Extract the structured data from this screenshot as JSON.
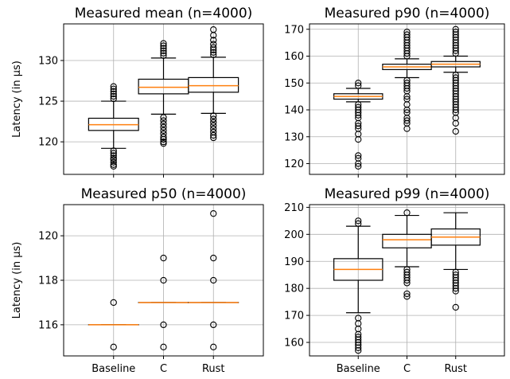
{
  "chart_data": [
    {
      "type": "box",
      "title": "Measured mean (n=4000)",
      "xlabel": "",
      "ylabel": "Latency (in µs)",
      "ylim": [
        116,
        134.5
      ],
      "yticks": [
        120,
        125,
        130
      ],
      "grid": true,
      "categories": [
        "Baseline",
        "C",
        "Rust"
      ],
      "boxes": [
        {
          "whislo": 119.2,
          "q1": 121.4,
          "median": 122.1,
          "q3": 122.9,
          "whishi": 125.0,
          "fliers": [
            117.0,
            117.2,
            117.5,
            117.8,
            118.0,
            118.3,
            118.6,
            118.9,
            125.3,
            125.6,
            125.9,
            126.2,
            126.5,
            126.8
          ]
        },
        {
          "whislo": 123.4,
          "q1": 125.9,
          "median": 126.7,
          "q3": 127.7,
          "whishi": 130.3,
          "fliers": [
            119.8,
            120.0,
            120.3,
            120.6,
            121.0,
            121.4,
            121.8,
            122.2,
            122.6,
            123.0,
            130.6,
            130.9,
            131.2,
            131.5,
            131.8,
            132.1
          ]
        },
        {
          "whislo": 123.5,
          "q1": 126.1,
          "median": 126.9,
          "q3": 127.9,
          "whishi": 130.4,
          "fliers": [
            120.5,
            120.8,
            121.2,
            121.6,
            122.0,
            122.4,
            122.8,
            123.2,
            130.7,
            131.0,
            131.3,
            131.6,
            132.0,
            132.5,
            133.1,
            133.8
          ]
        }
      ]
    },
    {
      "type": "box",
      "title": "Measured p90 (n=4000)",
      "xlabel": "",
      "ylabel": "",
      "ylim": [
        116,
        172
      ],
      "yticks": [
        120,
        130,
        140,
        150,
        160,
        170
      ],
      "grid": true,
      "categories": [
        "Baseline",
        "C",
        "Rust"
      ],
      "boxes": [
        {
          "whislo": 143.0,
          "q1": 144.0,
          "median": 145.0,
          "q3": 146.0,
          "whishi": 148.0,
          "fliers": [
            119,
            120,
            122,
            123,
            129,
            131,
            133,
            134,
            135,
            137,
            138,
            139,
            140,
            141,
            142,
            149,
            150
          ]
        },
        {
          "whislo": 152.0,
          "q1": 155.0,
          "median": 156.0,
          "q3": 157.0,
          "whishi": 159.0,
          "fliers": [
            133,
            135,
            136,
            137,
            139,
            140,
            142,
            144,
            145,
            147,
            148,
            149,
            150,
            151,
            160,
            161,
            162,
            163,
            164,
            165,
            166,
            167,
            168,
            169
          ]
        },
        {
          "whislo": 154.0,
          "q1": 156.0,
          "median": 157.0,
          "q3": 158.0,
          "whishi": 160.0,
          "fliers": [
            132,
            135,
            137,
            139,
            140,
            141,
            142,
            143,
            144,
            145,
            146,
            147,
            148,
            149,
            150,
            151,
            152,
            153,
            161,
            162,
            163,
            164,
            165,
            166,
            167,
            168,
            169,
            170
          ]
        }
      ]
    },
    {
      "type": "box",
      "title": "Measured p50 (n=4000)",
      "xlabel": "",
      "ylabel": "Latency (in µs)",
      "ylim": [
        114.6,
        121.4
      ],
      "yticks": [
        116,
        118,
        120
      ],
      "grid": true,
      "categories": [
        "Baseline",
        "C",
        "Rust"
      ],
      "boxes": [
        {
          "whislo": 116.0,
          "q1": 116.0,
          "median": 116.0,
          "q3": 116.0,
          "whishi": 116.0,
          "fliers": [
            115,
            117
          ]
        },
        {
          "whislo": 117.0,
          "q1": 117.0,
          "median": 117.0,
          "q3": 117.0,
          "whishi": 117.0,
          "fliers": [
            115,
            116,
            118,
            119
          ]
        },
        {
          "whislo": 117.0,
          "q1": 117.0,
          "median": 117.0,
          "q3": 117.0,
          "whishi": 117.0,
          "fliers": [
            115,
            116,
            118,
            119,
            121
          ]
        }
      ]
    },
    {
      "type": "box",
      "title": "Measured p99 (n=4000)",
      "xlabel": "",
      "ylabel": "",
      "ylim": [
        155,
        211
      ],
      "yticks": [
        160,
        170,
        180,
        190,
        200,
        210
      ],
      "grid": true,
      "categories": [
        "Baseline",
        "C",
        "Rust"
      ],
      "boxes": [
        {
          "whislo": 171.0,
          "q1": 183.0,
          "median": 187.0,
          "q3": 191.0,
          "whishi": 203.0,
          "fliers": [
            157,
            158,
            159,
            160,
            161,
            162,
            163,
            165,
            167,
            169,
            204,
            205
          ]
        },
        {
          "whislo": 188.0,
          "q1": 195.0,
          "median": 198.0,
          "q3": 200.0,
          "whishi": 207.0,
          "fliers": [
            177,
            178,
            182,
            183,
            184,
            185,
            186,
            187,
            208
          ]
        },
        {
          "whislo": 187.0,
          "q1": 196.0,
          "median": 199.0,
          "q3": 202.0,
          "whishi": 208.0,
          "fliers": [
            173,
            179,
            180,
            181,
            182,
            183,
            184,
            185,
            186
          ]
        }
      ]
    }
  ]
}
